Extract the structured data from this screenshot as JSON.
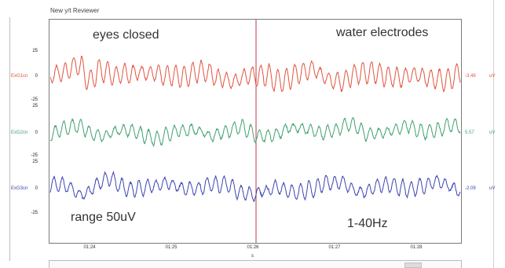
{
  "window": {
    "title": "New y/t Reviewer"
  },
  "annotations": {
    "top_left": "eyes closed",
    "top_right": "water electrodes",
    "bottom_left": "range 50uV",
    "bottom_right": "1-40Hz"
  },
  "axis": {
    "x_ticks": [
      "01:24",
      "01:25",
      "01:26",
      "01:27",
      "01:28"
    ],
    "x_unit": "s",
    "cursor_label": "01:26"
  },
  "channels": [
    {
      "name": "ExG1cn",
      "scale_top": "25",
      "zero": "0",
      "scale_bottom": "-25",
      "value": "-3.48",
      "unit": "uV",
      "color": "#e0533f"
    },
    {
      "name": "ExG2cn",
      "scale_top": "25",
      "zero": "0",
      "scale_bottom": "-25",
      "value": "5.57",
      "unit": "uV",
      "color": "#3fa070"
    },
    {
      "name": "ExG3cn",
      "scale_top": "25",
      "zero": "0",
      "scale_bottom": "-25",
      "value": "-2.09",
      "unit": "uV",
      "color": "#3a44b0"
    }
  ],
  "colors": {
    "cursor": "#c0384a"
  }
}
